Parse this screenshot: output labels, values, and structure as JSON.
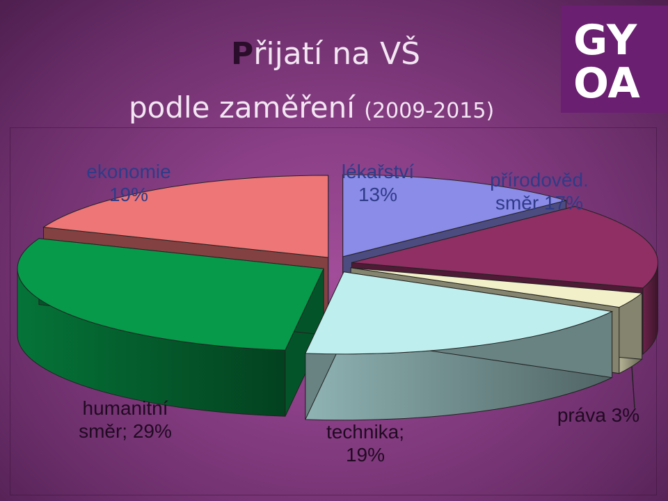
{
  "title": {
    "cap": "P",
    "line1_rest": "řijatí na VŠ",
    "line2": "podle zaměření",
    "years": "(2009-2015)"
  },
  "logo": {
    "top": "GY",
    "bottom": "OA"
  },
  "chart_data": {
    "type": "pie",
    "style": "3d-exploded",
    "title": "Přijatí na VŠ podle zaměření (2009-2015)",
    "slices": [
      {
        "name": "lékařství",
        "value": 13,
        "label_line1": "lékařství",
        "label_line2": "13%",
        "color": "#8b8be8"
      },
      {
        "name": "přírodověd. směr",
        "value": 17,
        "label_line1": "přírodověd.",
        "label_line2": "směr 17%",
        "color": "#8f2f63"
      },
      {
        "name": "práva",
        "value": 3,
        "label_line1": "práva 3%",
        "label_line2": "",
        "color": "#f2f0c8"
      },
      {
        "name": "technika",
        "value": 19,
        "label_line1": "technika;",
        "label_line2": "19%",
        "color": "#bfeeee"
      },
      {
        "name": "humanitní směr",
        "value": 29,
        "label_line1": "humanitní",
        "label_line2": "směr; 29%",
        "color": "#069a4a"
      },
      {
        "name": "ekonomie",
        "value": 19,
        "label_line1": "ekonomie",
        "label_line2": "19%",
        "color": "#ee7676"
      }
    ]
  }
}
